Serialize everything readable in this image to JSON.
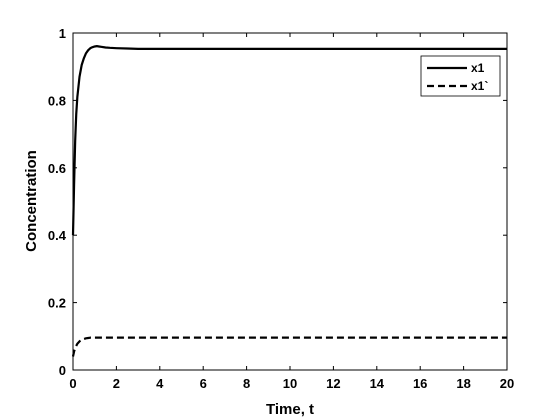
{
  "chart_data": {
    "type": "line",
    "xlabel": "Time, t",
    "ylabel": "Concentration",
    "xlim": [
      0,
      20
    ],
    "ylim": [
      0,
      1
    ],
    "xticks": [
      "0",
      "2",
      "4",
      "6",
      "8",
      "10",
      "12",
      "14",
      "16",
      "18",
      "20"
    ],
    "yticks": [
      "0",
      "0.2",
      "0.4",
      "0.6",
      "0.8",
      "1"
    ],
    "grid": false,
    "legend_position": "top-right",
    "series": [
      {
        "name": "x1",
        "style": "solid",
        "color": "#000000",
        "x": [
          0,
          0.05,
          0.1,
          0.15,
          0.2,
          0.3,
          0.4,
          0.5,
          0.6,
          0.7,
          0.8,
          0.9,
          1.0,
          1.1,
          1.2,
          1.3,
          1.5,
          1.7,
          2.0,
          2.5,
          3.0,
          4,
          6,
          8,
          10,
          12,
          14,
          16,
          18,
          20
        ],
        "values": [
          0.4,
          0.55,
          0.68,
          0.76,
          0.81,
          0.87,
          0.905,
          0.925,
          0.94,
          0.949,
          0.955,
          0.958,
          0.96,
          0.961,
          0.96,
          0.959,
          0.957,
          0.956,
          0.955,
          0.954,
          0.953,
          0.953,
          0.953,
          0.953,
          0.953,
          0.953,
          0.953,
          0.953,
          0.953,
          0.953
        ]
      },
      {
        "name": "x1`",
        "style": "dashed",
        "color": "#000000",
        "x": [
          0,
          0.05,
          0.1,
          0.2,
          0.3,
          0.4,
          0.5,
          0.6,
          0.7,
          0.8,
          1.0,
          1.2,
          1.5,
          2.0,
          3,
          4,
          6,
          8,
          10,
          12,
          14,
          16,
          18,
          20
        ],
        "values": [
          0.04,
          0.055,
          0.065,
          0.078,
          0.085,
          0.089,
          0.092,
          0.094,
          0.095,
          0.096,
          0.096,
          0.096,
          0.096,
          0.096,
          0.096,
          0.096,
          0.096,
          0.096,
          0.096,
          0.096,
          0.096,
          0.096,
          0.096,
          0.096
        ]
      }
    ]
  }
}
